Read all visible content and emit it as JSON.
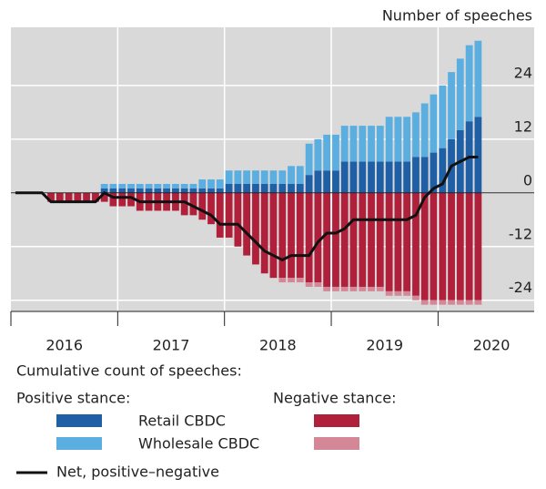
{
  "chart_data": {
    "type": "bar",
    "y_label": "Number of speeches",
    "x": [
      2016.042,
      2016.125,
      2016.208,
      2016.292,
      2016.375,
      2016.458,
      2016.542,
      2016.625,
      2016.708,
      2016.792,
      2016.875,
      2016.958,
      2017.042,
      2017.125,
      2017.208,
      2017.292,
      2017.375,
      2017.458,
      2017.542,
      2017.625,
      2017.708,
      2017.792,
      2017.875,
      2017.958,
      2018.042,
      2018.125,
      2018.208,
      2018.292,
      2018.375,
      2018.458,
      2018.542,
      2018.625,
      2018.708,
      2018.792,
      2018.875,
      2018.958,
      2019.042,
      2019.125,
      2019.208,
      2019.292,
      2019.375,
      2019.458,
      2019.542,
      2019.625,
      2019.708,
      2019.792,
      2019.875,
      2019.958,
      2020.042,
      2020.125,
      2020.208,
      2020.292,
      2020.375
    ],
    "series": [
      {
        "name": "Retail CBDC",
        "color": "#1f5fa6",
        "values": [
          0,
          0,
          0,
          0,
          0,
          0,
          0,
          0,
          0,
          0,
          1,
          1,
          1,
          1,
          1,
          1,
          1,
          1,
          1,
          1,
          1,
          1,
          1,
          1,
          2,
          2,
          2,
          2,
          2,
          2,
          2,
          2,
          2,
          4,
          5,
          5,
          5,
          7,
          7,
          7,
          7,
          7,
          7,
          7,
          7,
          8,
          8,
          9,
          10,
          12,
          14,
          16,
          17
        ]
      },
      {
        "name": "Wholesale CBDC",
        "color": "#5aaee0",
        "values": [
          0,
          0,
          0,
          0,
          0,
          0,
          0,
          0,
          0,
          0,
          1,
          1,
          1,
          1,
          1,
          1,
          1,
          1,
          1,
          1,
          1,
          2,
          2,
          2,
          3,
          3,
          3,
          3,
          3,
          3,
          3,
          4,
          4,
          7,
          7,
          8,
          8,
          8,
          8,
          8,
          8,
          8,
          10,
          10,
          10,
          10,
          12,
          13,
          14,
          15,
          16,
          17,
          17
        ]
      },
      {
        "color": "#b0203a",
        "values": [
          0,
          0,
          0,
          0,
          -2,
          -2,
          -2,
          -2,
          -2,
          -2,
          -2,
          -3,
          -3,
          -3,
          -4,
          -4,
          -4,
          -4,
          -4,
          -5,
          -5,
          -6,
          -7,
          -10,
          -10,
          -12,
          -14,
          -16,
          -18,
          -19,
          -19,
          -19,
          -19,
          -20,
          -20,
          -21,
          -21,
          -21,
          -21,
          -21,
          -21,
          -21,
          -22,
          -22,
          -22,
          -23,
          -24,
          -24,
          -24,
          -24,
          -24,
          -24,
          -24
        ]
      },
      {
        "color": "#d48796",
        "values": [
          0,
          0,
          0,
          0,
          0,
          0,
          0,
          0,
          0,
          0,
          0,
          0,
          0,
          0,
          0,
          0,
          0,
          0,
          0,
          0,
          0,
          0,
          0,
          0,
          0,
          0,
          0,
          0,
          0,
          0,
          -1,
          -1,
          -1,
          -1,
          -1,
          -1,
          -1,
          -1,
          -1,
          -1,
          -1,
          -1,
          -1,
          -1,
          -1,
          -1,
          -1,
          -1,
          -1,
          -1,
          -1,
          -1,
          -1
        ]
      },
      {
        "name": "Net, positive–negative",
        "type": "line",
        "color": "#111111",
        "values": [
          0,
          0,
          0,
          0,
          -2,
          -2,
          -2,
          -2,
          -2,
          -2,
          0,
          -1,
          -1,
          -1,
          -2,
          -2,
          -2,
          -2,
          -2,
          -2,
          -3,
          -4,
          -5,
          -7,
          -7,
          -7,
          -9,
          -11,
          -13,
          -14,
          -15,
          -14,
          -14,
          -14,
          -11,
          -9,
          -9,
          -8,
          -6,
          -6,
          -6,
          -6,
          -6,
          -6,
          -6,
          -5,
          -1,
          1,
          2,
          6,
          7,
          8,
          8
        ]
      }
    ],
    "legend_title": "Cumulative count of speeches:",
    "legend_groups": [
      "Positive stance:",
      "Negative stance:"
    ],
    "xlim": [
      2016,
      2020.9
    ],
    "xticks": [
      2016,
      2017,
      2018,
      2019,
      2020
    ],
    "ylim": [
      -26.5,
      37
    ],
    "yticks": [
      -24,
      -12,
      0,
      12,
      24
    ],
    "grid": true,
    "background": "#d9d9d9"
  }
}
